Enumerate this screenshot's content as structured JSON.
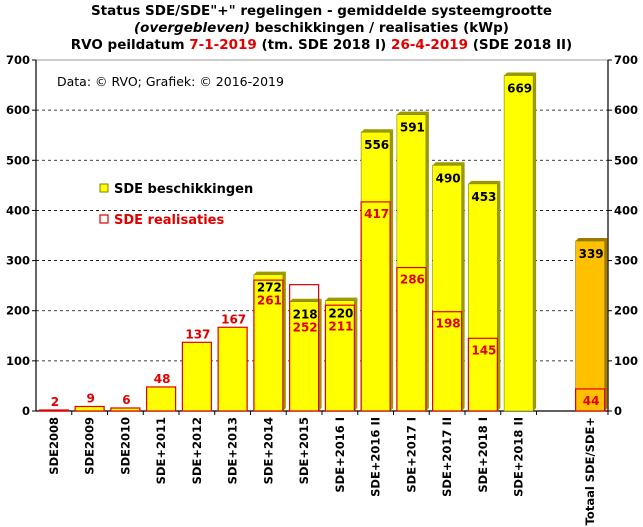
{
  "title": {
    "line1": "Status SDE/SDE\"+\"  regelingen - gemiddelde systeemgrootte",
    "line2_italic": "(overgebleven)",
    "line2_rest": " beschikkingen  / realisaties (kWp)",
    "line3_a": "RVO peildatum ",
    "line3_date1": "7-1-2019",
    "line3_b": " (tm. SDE 2018 I) ",
    "line3_date2": "26-4-2019",
    "line3_c": " (SDE 2018 II)"
  },
  "source_note": "Data: © RVO; Grafiek: © 2016-2019",
  "colors": {
    "bar_yellow": "#ffff00",
    "bar_yellow_shadow": "#9a9a00",
    "total_orange": "#ffc000",
    "total_shadow": "#a07800",
    "realisatie_border": "#e00000",
    "realisatie_label": "#e00000",
    "beschikking_label": "#000000",
    "grid": "#000000",
    "plot_border": "#999999"
  },
  "chart_data": {
    "type": "bar",
    "categories": [
      "SDE2008",
      "SDE2009",
      "SDE2010",
      "SDE+2011",
      "SDE+2012",
      "SDE+2013",
      "SDE+2014",
      "SDE+2015",
      "SDE+2016 I",
      "SDE+2016 II",
      "SDE+2017 I",
      "SDE+2017 II",
      "SDE+2018 I",
      "SDE+2018 II",
      "",
      "Totaal SDE/SDE+"
    ],
    "series": [
      {
        "name": "SDE beschikkingen",
        "values": [
          null,
          null,
          null,
          null,
          null,
          null,
          272,
          218,
          220,
          556,
          591,
          490,
          453,
          669,
          null,
          339
        ]
      },
      {
        "name": "SDE realisaties",
        "values": [
          2,
          9,
          6,
          48,
          137,
          167,
          261,
          252,
          211,
          417,
          286,
          198,
          145,
          null,
          null,
          44
        ]
      }
    ],
    "ylim": [
      0,
      700
    ],
    "yticks": [
      0,
      100,
      200,
      300,
      400,
      500,
      600,
      700
    ],
    "grid": "horizontal dashed",
    "legend_position": "left, inside plot",
    "secondary_axis": "right, same scale"
  }
}
